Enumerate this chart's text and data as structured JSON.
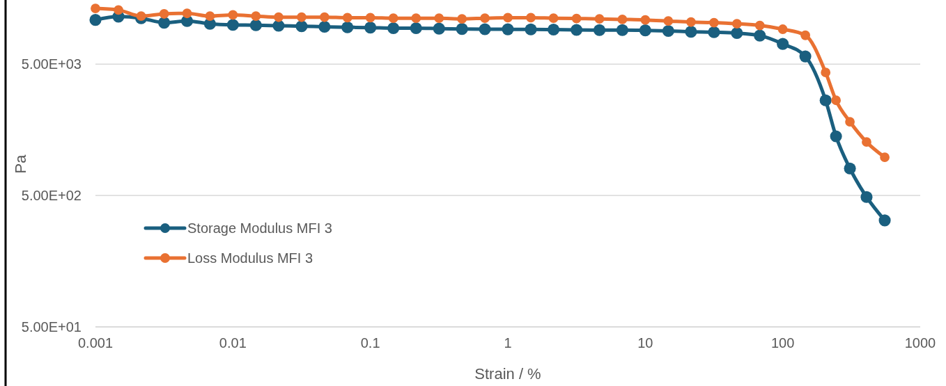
{
  "chart_data": {
    "type": "line",
    "xlabel": "Strain / %",
    "ylabel": "Pa",
    "x": [
      0.001,
      0.00147,
      0.00215,
      0.00316,
      0.00464,
      0.00681,
      0.01,
      0.0147,
      0.0215,
      0.0316,
      0.0464,
      0.0681,
      0.1,
      0.147,
      0.215,
      0.316,
      0.464,
      0.681,
      1,
      1.47,
      2.15,
      3.16,
      4.64,
      6.81,
      10,
      14.7,
      21.5,
      31.6,
      46.4,
      68.1,
      100,
      146,
      205,
      244,
      308,
      407,
      552
    ],
    "series": [
      {
        "name": "Storage Modulus MFI 3",
        "color": "#1a5f7f",
        "values": [
          10840,
          11490,
          11170,
          10330,
          10640,
          10130,
          9940,
          9890,
          9790,
          9710,
          9610,
          9530,
          9480,
          9390,
          9390,
          9310,
          9250,
          9210,
          9200,
          9180,
          9150,
          9100,
          9080,
          9080,
          9030,
          8940,
          8810,
          8740,
          8610,
          8240,
          7120,
          5720,
          2650,
          1410,
          803,
          487,
          323
        ]
      },
      {
        "name": "Loss Modulus MFI 3",
        "color": "#e97132",
        "values": [
          13270,
          12900,
          11590,
          12050,
          12160,
          11590,
          11830,
          11590,
          11370,
          11370,
          11370,
          11270,
          11270,
          11170,
          11170,
          11170,
          11040,
          11170,
          11270,
          11270,
          11170,
          11110,
          11040,
          10940,
          10840,
          10640,
          10440,
          10330,
          10130,
          9840,
          9210,
          8280,
          4320,
          2650,
          1820,
          1276,
          977
        ]
      }
    ],
    "log": "xy",
    "xlim": [
      0.001,
      1000
    ],
    "xticks": [
      0.001,
      0.01,
      0.1,
      1,
      10,
      100,
      1000
    ],
    "ylim": [
      50,
      15000
    ],
    "yticks": [
      {
        "value": 50,
        "label": "5.00E+01"
      },
      {
        "value": 500,
        "label": "5.00E+02"
      },
      {
        "value": 5000,
        "label": "5.00E+03"
      }
    ],
    "grid": "y",
    "legend": "left",
    "marker": "circle",
    "line_style": "solid"
  }
}
